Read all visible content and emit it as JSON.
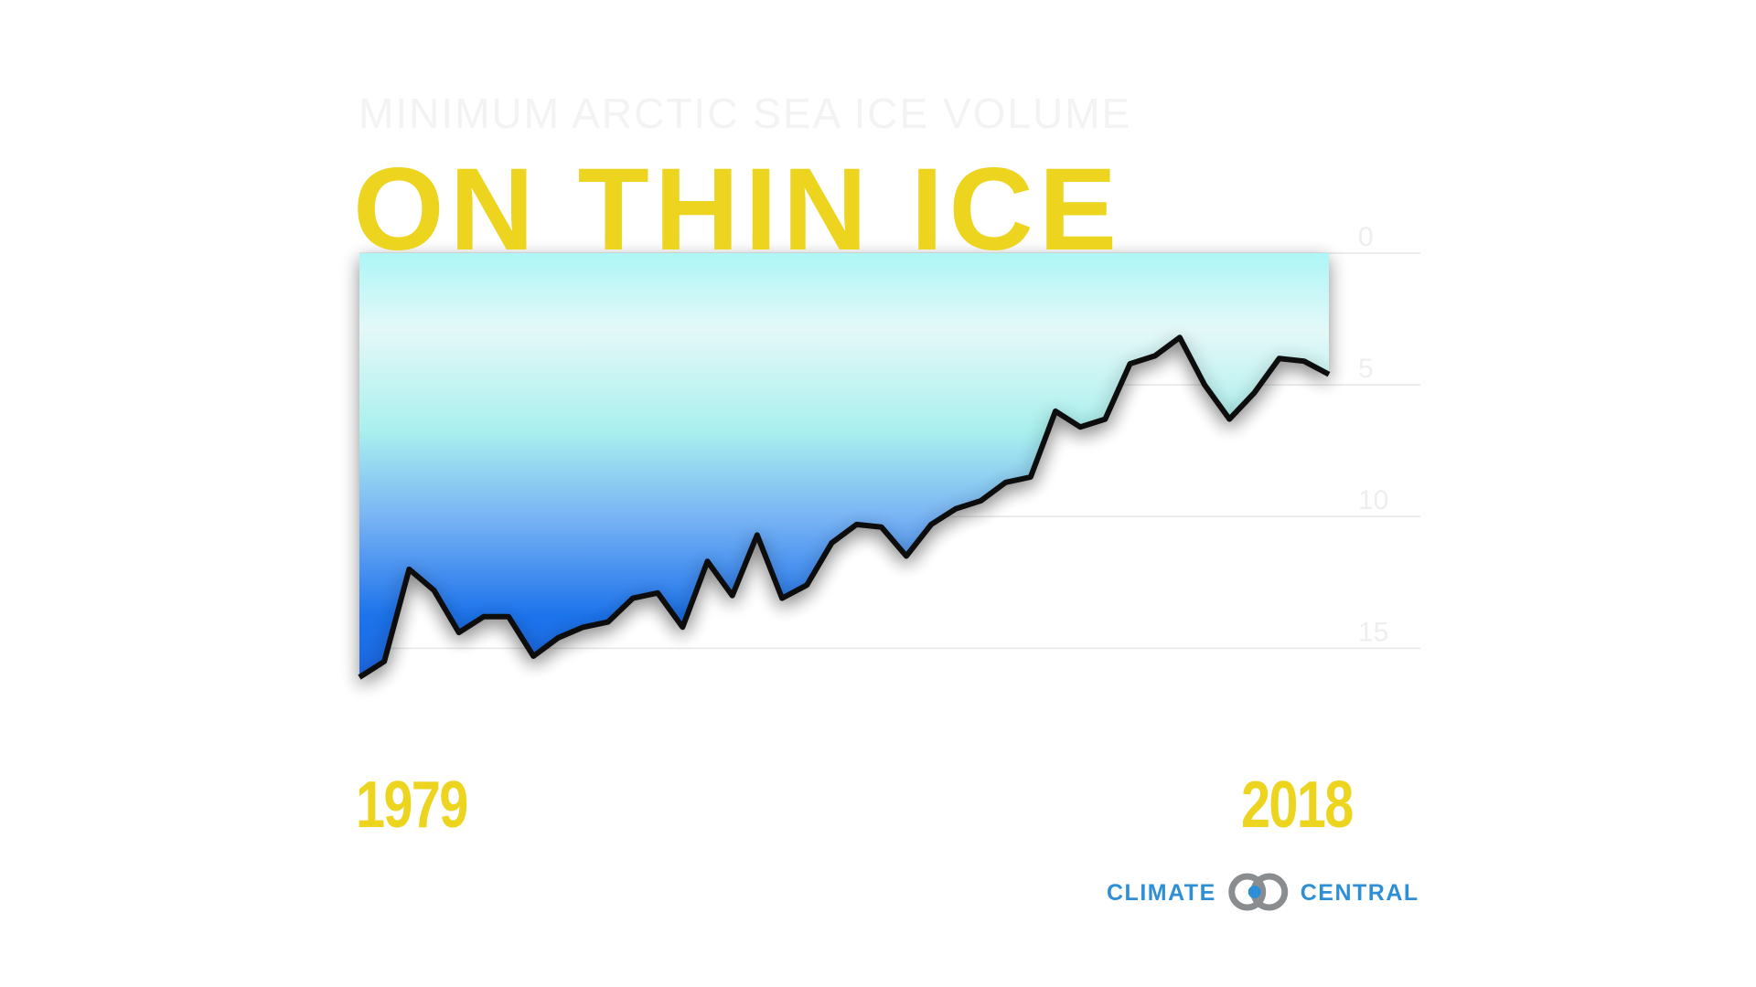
{
  "chart_data": {
    "type": "line",
    "title": "ON THIN ICE",
    "subtitle": "MINIMUM ARCTIC SEA ICE VOLUME",
    "categories": [
      "1979",
      null,
      null,
      null,
      null,
      null,
      null,
      null,
      null,
      null,
      null,
      null,
      null,
      null,
      null,
      null,
      null,
      null,
      null,
      null,
      null,
      null,
      null,
      null,
      null,
      null,
      null,
      null,
      null,
      null,
      null,
      null,
      null,
      null,
      null,
      null,
      null,
      null,
      null,
      "2018"
    ],
    "values": [
      16.1,
      15.5,
      12.0,
      12.8,
      14.4,
      13.8,
      13.8,
      15.3,
      14.6,
      14.2,
      14.0,
      13.1,
      12.9,
      14.2,
      11.7,
      13.0,
      10.7,
      13.1,
      12.6,
      11.0,
      10.3,
      10.4,
      11.5,
      10.3,
      9.7,
      9.4,
      8.7,
      8.5,
      6.0,
      6.6,
      6.3,
      4.2,
      3.9,
      3.2,
      5.0,
      6.3,
      5.3,
      4.0,
      4.1,
      4.6
    ],
    "color": "#111111",
    "ylim": [
      0,
      17
    ],
    "yticks": [
      0,
      5,
      10,
      15
    ],
    "inverted": true,
    "grid": true,
    "source": "CLIMATE CENTRAL"
  }
}
